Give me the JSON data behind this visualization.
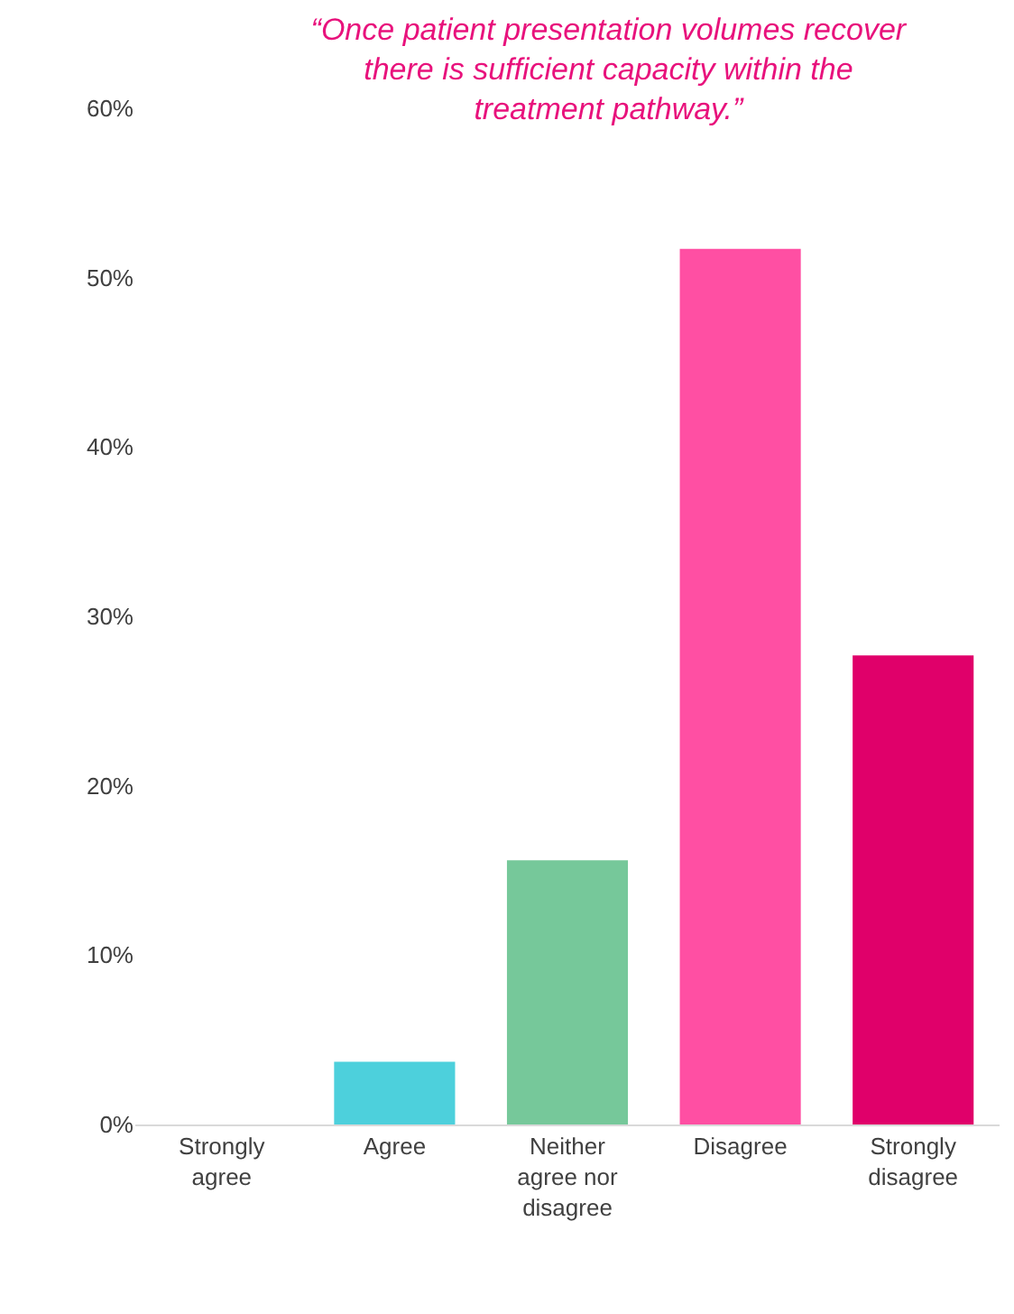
{
  "chart_data": {
    "type": "bar",
    "title": "“Once patient presentation volumes recover there is sufficient capacity within the treatment pathway.”",
    "categories": [
      "Strongly agree",
      "Agree",
      "Neither agree nor disagree",
      "Disagree",
      "Strongly disagree"
    ],
    "values": [
      0,
      3.7,
      15.6,
      51.7,
      27.7
    ],
    "colors": [
      "#4dd0dc",
      "#4dd0dc",
      "#76c89a",
      "#ff4fa3",
      "#e0006a"
    ],
    "ylim": [
      0,
      60
    ],
    "yticks": [
      {
        "value": 0,
        "label": "0%"
      },
      {
        "value": 10,
        "label": "10%"
      },
      {
        "value": 20,
        "label": "20%"
      },
      {
        "value": 30,
        "label": "30%"
      },
      {
        "value": 40,
        "label": "40%"
      },
      {
        "value": 50,
        "label": "50%"
      },
      {
        "value": 60,
        "label": "60%"
      }
    ],
    "grid": false
  }
}
